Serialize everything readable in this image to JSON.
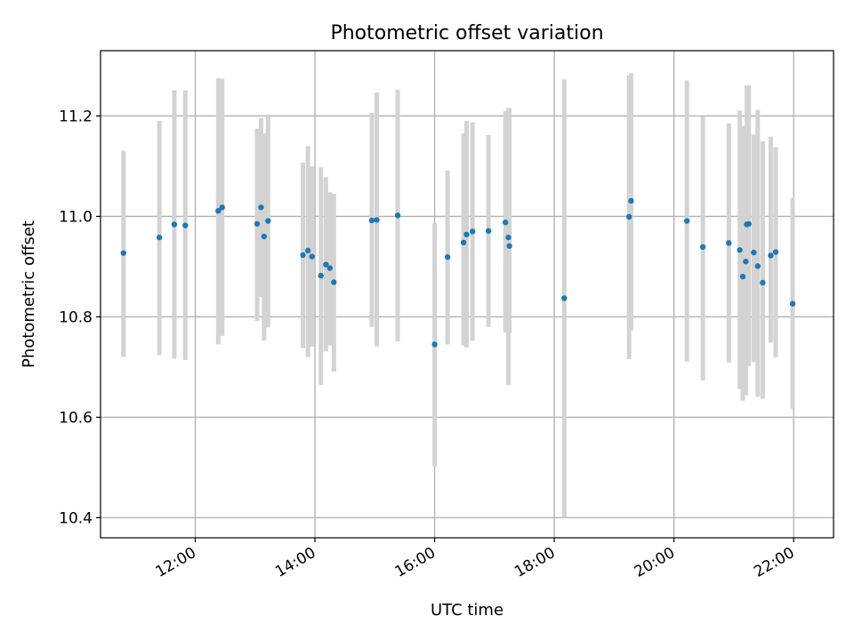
{
  "chart_data": {
    "type": "scatter",
    "title": "Photometric offset variation",
    "xlabel": "UTC time",
    "ylabel": "Photometric offset",
    "xlim": [
      "10:25",
      "22:40"
    ],
    "ylim": [
      10.36,
      11.33
    ],
    "x_ticks": [
      "12:00",
      "14:00",
      "16:00",
      "18:00",
      "20:00",
      "22:00"
    ],
    "y_ticks": [
      "10.4",
      "10.6",
      "10.8",
      "11.0",
      "11.2"
    ],
    "grid": true,
    "point_color": "#1f77b4",
    "errorbar_color": "#d3d3d3",
    "series": [
      {
        "x": [
          "10:48",
          "11:24",
          "11:39",
          "11:50",
          "12:23",
          "12:27",
          "13:02",
          "13:06",
          "13:09",
          "13:13",
          "13:48",
          "13:53",
          "13:57",
          "14:06",
          "14:11",
          "14:15",
          "14:19",
          "14:57",
          "15:02",
          "15:23",
          "16:00",
          "16:13",
          "16:29",
          "16:32",
          "16:38",
          "16:54",
          "17:11",
          "17:14",
          "17:15",
          "18:10",
          "19:15",
          "19:17",
          "20:13",
          "20:29",
          "20:55",
          "21:06",
          "21:09",
          "21:12",
          "21:13",
          "21:15",
          "21:20",
          "21:24",
          "21:29",
          "21:37",
          "21:42",
          "21:59"
        ],
        "y": [
          10.927,
          10.958,
          10.984,
          10.982,
          11.011,
          11.018,
          10.985,
          11.018,
          10.96,
          10.991,
          10.923,
          10.932,
          10.92,
          10.882,
          10.904,
          10.897,
          10.869,
          10.992,
          10.993,
          11.002,
          10.745,
          10.919,
          10.948,
          10.964,
          10.97,
          10.971,
          10.988,
          10.958,
          10.941,
          10.837,
          10.999,
          11.031,
          10.991,
          10.939,
          10.947,
          10.933,
          10.88,
          10.91,
          10.984,
          10.985,
          10.928,
          10.901,
          10.868,
          10.922,
          10.929,
          10.826
        ],
        "yerr_low": [
          10.72,
          10.724,
          10.717,
          10.714,
          10.745,
          10.762,
          10.792,
          10.84,
          10.753,
          10.779,
          10.738,
          10.72,
          10.741,
          10.664,
          10.731,
          10.743,
          10.691,
          10.78,
          10.741,
          10.751,
          10.502,
          10.745,
          10.743,
          10.739,
          10.752,
          10.78,
          10.769,
          10.664,
          10.768,
          10.4,
          10.716,
          10.772,
          10.711,
          10.673,
          10.709,
          10.656,
          10.633,
          10.643,
          10.71,
          10.702,
          10.71,
          10.641,
          10.637,
          10.749,
          10.719,
          10.617
        ],
        "yerr_high": [
          11.131,
          11.19,
          11.251,
          11.251,
          11.275,
          11.274,
          11.175,
          11.196,
          11.165,
          11.203,
          11.107,
          11.14,
          11.1,
          11.098,
          11.078,
          11.048,
          11.045,
          11.206,
          11.247,
          11.252,
          10.986,
          11.091,
          11.165,
          11.19,
          11.187,
          11.162,
          11.21,
          11.216,
          11.215,
          11.273,
          11.281,
          11.285,
          11.271,
          11.199,
          11.185,
          11.211,
          11.18,
          11.176,
          11.261,
          11.261,
          11.163,
          11.212,
          11.15,
          11.159,
          11.138,
          11.036
        ]
      }
    ]
  }
}
